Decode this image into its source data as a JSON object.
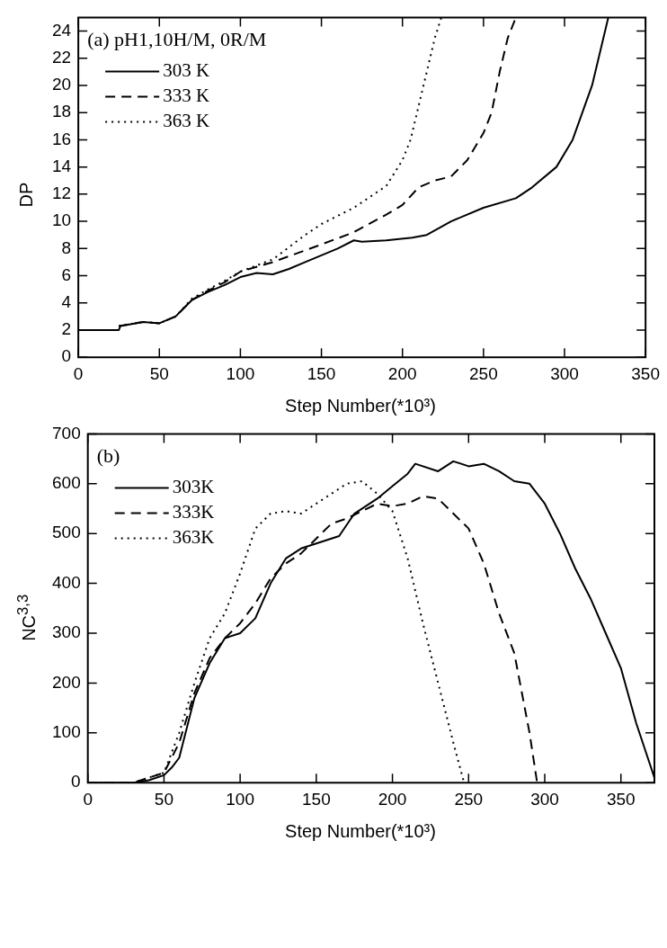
{
  "chart_data": [
    {
      "type": "line",
      "legend_title": "(a) pH1,10H/M, 0R/M",
      "xlabel": "Step Number(*10³)",
      "ylabel": "DP",
      "legend": "top left",
      "xlim": [
        0,
        350
      ],
      "xticks": [
        0,
        50,
        100,
        150,
        200,
        250,
        300,
        350
      ],
      "ylim": [
        0,
        25
      ],
      "yticks": [
        0,
        2,
        4,
        6,
        8,
        10,
        12,
        14,
        16,
        18,
        20,
        22,
        24
      ],
      "series": [
        {
          "name": "303 K",
          "color": "#000000",
          "line_style": "solid",
          "x": [
            0,
            25,
            26,
            40,
            50,
            60,
            70,
            80,
            90,
            100,
            110,
            120,
            130,
            140,
            150,
            160,
            170,
            175,
            190,
            206,
            215,
            230,
            250,
            270,
            280,
            295,
            305,
            317,
            327
          ],
          "values": [
            2,
            2,
            2.3,
            2.6,
            2.5,
            3,
            4.2,
            4.8,
            5.3,
            5.9,
            6.2,
            6.1,
            6.5,
            7,
            7.5,
            8,
            8.6,
            8.5,
            8.6,
            8.8,
            9,
            10,
            11,
            11.7,
            12.5,
            14,
            16,
            20,
            25
          ]
        },
        {
          "name": "333 K",
          "color": "#000000",
          "line_style": "dashed",
          "x": [
            25,
            40,
            50,
            60,
            70,
            80,
            90,
            100,
            120,
            150,
            170,
            190,
            200,
            210,
            220,
            230,
            240,
            250,
            255,
            260,
            265,
            270
          ],
          "values": [
            2.3,
            2.6,
            2.5,
            3,
            4.2,
            4.9,
            5.5,
            6.3,
            7,
            8.3,
            9.2,
            10.5,
            11.2,
            12.5,
            13,
            13.3,
            14.5,
            16.5,
            18,
            21,
            23.5,
            25
          ]
        },
        {
          "name": "363 K",
          "color": "#000000",
          "line_style": "dotted",
          "x": [
            25,
            40,
            50,
            60,
            70,
            80,
            90,
            100,
            120,
            140,
            150,
            170,
            190,
            200,
            205,
            210,
            215,
            220,
            224
          ],
          "values": [
            2.3,
            2.6,
            2.5,
            3,
            4.3,
            5,
            5.6,
            6.3,
            7.2,
            9,
            9.8,
            11,
            12.6,
            14.5,
            16,
            18.5,
            21,
            23.5,
            25
          ]
        }
      ]
    },
    {
      "type": "line",
      "legend_title": "(b)",
      "xlabel": "Step Number(*10³)",
      "ylabel": "NC$^{3,3}$",
      "legend": "top left",
      "xlim": [
        0,
        372
      ],
      "xticks": [
        0,
        50,
        100,
        150,
        200,
        250,
        300,
        350
      ],
      "ylim": [
        0,
        700
      ],
      "yticks": [
        0,
        100,
        200,
        300,
        400,
        500,
        600,
        700
      ],
      "series": [
        {
          "name": "303K",
          "color": "#000000",
          "line_style": "solid",
          "x": [
            0,
            30,
            40,
            50,
            55,
            60,
            65,
            70,
            80,
            90,
            100,
            110,
            120,
            130,
            140,
            150,
            160,
            165,
            175,
            190,
            200,
            210,
            215,
            230,
            240,
            250,
            260,
            270,
            280,
            290,
            300,
            310,
            320,
            330,
            340,
            350,
            360,
            372
          ],
          "values": [
            0,
            0,
            5,
            15,
            30,
            50,
            110,
            170,
            240,
            290,
            300,
            330,
            400,
            450,
            470,
            480,
            490,
            495,
            540,
            570,
            595,
            620,
            640,
            625,
            645,
            635,
            640,
            625,
            605,
            600,
            560,
            500,
            430,
            370,
            300,
            230,
            120,
            10
          ]
        },
        {
          "name": "333K",
          "color": "#000000",
          "line_style": "dashed",
          "x": [
            0,
            30,
            50,
            60,
            70,
            80,
            90,
            100,
            110,
            120,
            130,
            140,
            150,
            160,
            170,
            180,
            190,
            200,
            210,
            220,
            230,
            240,
            250,
            260,
            270,
            280,
            290,
            295
          ],
          "values": [
            0,
            0,
            20,
            80,
            180,
            250,
            290,
            320,
            360,
            410,
            440,
            460,
            490,
            520,
            530,
            545,
            560,
            555,
            560,
            575,
            570,
            540,
            510,
            440,
            340,
            260,
            100,
            0
          ]
        },
        {
          "name": "363K",
          "color": "#000000",
          "line_style": "dotted",
          "x": [
            0,
            30,
            40,
            50,
            60,
            70,
            80,
            90,
            100,
            110,
            120,
            130,
            140,
            150,
            160,
            170,
            180,
            190,
            200,
            210,
            220,
            230,
            240,
            247
          ],
          "values": [
            0,
            0,
            10,
            20,
            100,
            200,
            290,
            340,
            420,
            510,
            540,
            545,
            540,
            560,
            580,
            600,
            605,
            580,
            545,
            450,
            320,
            200,
            80,
            0
          ]
        }
      ]
    }
  ]
}
